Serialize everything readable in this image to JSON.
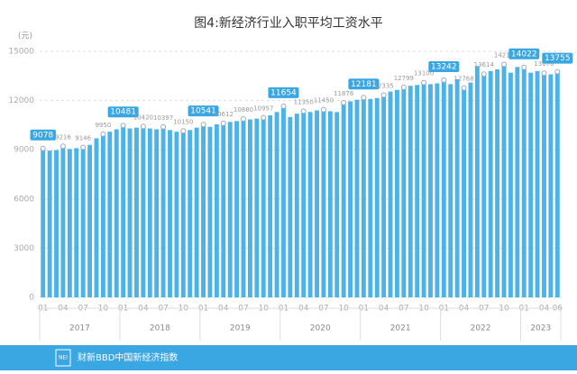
{
  "chart_data": {
    "type": "bar",
    "title": "图4:新经济行业入职平均工资水平",
    "y_unit": "(元)",
    "categories": [
      "01",
      null,
      null,
      "04",
      null,
      null,
      "07",
      null,
      null,
      "10",
      null,
      null,
      "01",
      null,
      null,
      "04",
      null,
      null,
      "07",
      null,
      null,
      "10",
      null,
      null,
      "01",
      null,
      null,
      "04",
      null,
      null,
      "07",
      null,
      null,
      "10",
      null,
      null,
      "01",
      null,
      null,
      "04",
      null,
      null,
      "07",
      null,
      null,
      "10",
      null,
      null,
      "01",
      null,
      null,
      "04",
      null,
      null,
      "07",
      null,
      null,
      "10",
      null,
      null,
      "01",
      null,
      null,
      "04",
      null,
      null,
      "07",
      null,
      null,
      "10",
      null,
      null,
      "01",
      null,
      null,
      "04",
      null,
      "06"
    ],
    "years": [
      "2017",
      "2018",
      "2019",
      "2020",
      "2021",
      "2022",
      "2023"
    ],
    "values": [
      9078,
      8950,
      8980,
      9216,
      9050,
      9100,
      9146,
      9300,
      9700,
      9950,
      10100,
      10250,
      10481,
      10300,
      10350,
      10420,
      10300,
      10250,
      10397,
      10200,
      10100,
      10150,
      10200,
      10350,
      10541,
      10400,
      10550,
      10612,
      10700,
      10750,
      10880,
      10850,
      10900,
      10957,
      11100,
      11300,
      11654,
      11000,
      11200,
      11350,
      11300,
      11400,
      11450,
      11350,
      11300,
      11876,
      11950,
      12050,
      12181,
      12100,
      12150,
      12335,
      12550,
      12650,
      12799,
      12900,
      12950,
      13100,
      13000,
      13050,
      13242,
      13000,
      13300,
      12768,
      13100,
      14100,
      13614,
      13800,
      13900,
      14210,
      13700,
      14050,
      14022,
      13700,
      13800,
      13670,
      13600,
      13755
    ],
    "value_labels": [
      "9078",
      null,
      null,
      "9216",
      null,
      null,
      "9146",
      null,
      null,
      "9950",
      null,
      null,
      "10481",
      null,
      null,
      "10420",
      null,
      null,
      "10397",
      null,
      null,
      "10150",
      null,
      null,
      "10541",
      null,
      null,
      "10612",
      null,
      null,
      "10880",
      null,
      null,
      "10957",
      null,
      null,
      "11654",
      null,
      null,
      "11350",
      null,
      null,
      "11450",
      null,
      null,
      "11876",
      null,
      null,
      "12181",
      null,
      null,
      "12335",
      null,
      null,
      "12799",
      null,
      null,
      "13100",
      null,
      null,
      "13242",
      null,
      null,
      "12768",
      null,
      null,
      "13614",
      null,
      null,
      "14210",
      null,
      null,
      "14022",
      null,
      null,
      "13670",
      null,
      "13755"
    ],
    "color": "#4cb3e8",
    "ylim": [
      0,
      15000
    ],
    "yticks": [
      0,
      3000,
      6000,
      9000,
      12000,
      15000
    ],
    "grid": true,
    "footer": "财新BBD中国新经济指数",
    "logo": "NEI"
  }
}
